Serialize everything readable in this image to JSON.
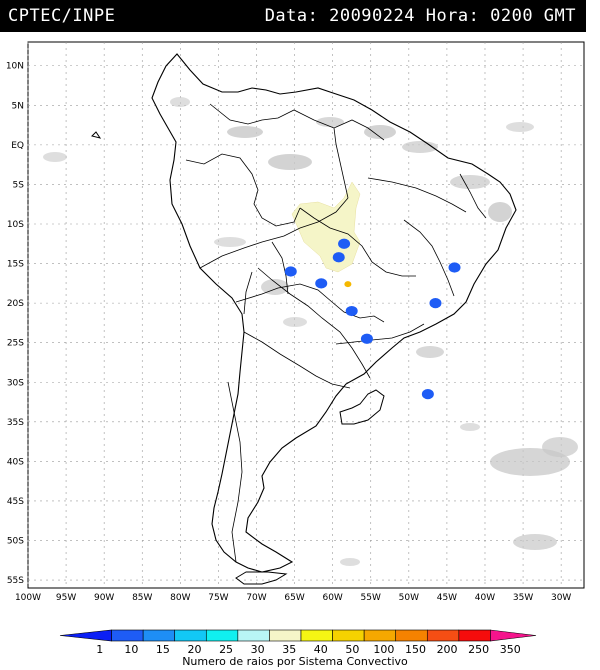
{
  "header": {
    "source": "CPTEC/INPE",
    "datetime": "Data: 20090224 Hora: 0200 GMT"
  },
  "map": {
    "lon_range": [
      -100,
      -27
    ],
    "lat_range": [
      -56,
      13
    ],
    "lat_ticks": [
      "10N",
      "5N",
      "EQ",
      "5S",
      "10S",
      "15S",
      "20S",
      "25S",
      "30S",
      "35S",
      "40S",
      "45S",
      "50S",
      "55S"
    ],
    "lon_ticks": [
      "100W",
      "95W",
      "90W",
      "85W",
      "80W",
      "75W",
      "70W",
      "65W",
      "60W",
      "55W",
      "50W",
      "45W",
      "40W",
      "35W",
      "30W"
    ],
    "colors": {
      "coast": "#000000",
      "cloud": "#c8c8c8",
      "grid": "#9a9a9a"
    },
    "convective_systems": [
      {
        "lon": -58.5,
        "lat": -12.5,
        "rank": 0,
        "color": "#1e5cf5"
      },
      {
        "lon": -59.2,
        "lat": -14.2,
        "rank": 0,
        "color": "#1e5cf5"
      },
      {
        "lon": -65.5,
        "lat": -16.0,
        "rank": 0,
        "color": "#1e5cf5"
      },
      {
        "lon": -61.5,
        "lat": -17.5,
        "rank": 0,
        "color": "#1e5cf5"
      },
      {
        "lon": -58.0,
        "lat": -17.6,
        "rank": 5,
        "color": "#f5b800"
      },
      {
        "lon": -55.5,
        "lat": -24.5,
        "rank": 0,
        "color": "#1e5cf5"
      },
      {
        "lon": -57.5,
        "lat": -21.0,
        "rank": 0,
        "color": "#1e5cf5"
      },
      {
        "lon": -46.5,
        "lat": -20.0,
        "rank": 0,
        "color": "#1e5cf5"
      },
      {
        "lon": -44.0,
        "lat": -15.5,
        "rank": 0,
        "color": "#1e5cf5"
      },
      {
        "lon": -47.5,
        "lat": -31.5,
        "rank": 0,
        "color": "#1e5cf5"
      }
    ]
  },
  "legend": {
    "labels": [
      "1",
      "10",
      "15",
      "20",
      "25",
      "30",
      "35",
      "40",
      "50",
      "100",
      "150",
      "200",
      "250",
      "350"
    ],
    "colors": [
      "#0b1ff5",
      "#1e5cf5",
      "#1e8ef5",
      "#12c8f5",
      "#10f0f0",
      "#b8f5f5",
      "#f5f5c8",
      "#f5f514",
      "#f5d200",
      "#f5a800",
      "#f58200",
      "#f54e14",
      "#f50c0c",
      "#f5148c"
    ],
    "caption": "Numero de raios por Sistema Convectivo"
  }
}
